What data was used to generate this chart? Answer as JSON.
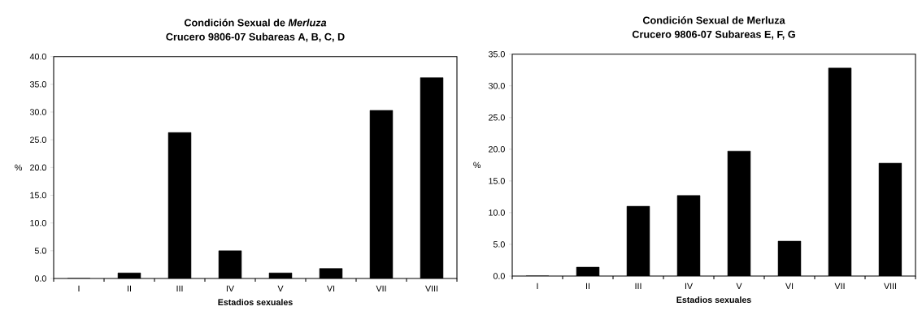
{
  "chart_data": [
    {
      "type": "bar",
      "title": "Condición Sexual de *Merluza*",
      "subtitle": "Crucero 9806-07 Subareas A, B, C, D",
      "xlabel": "Estadios sexuales",
      "ylabel": "%",
      "categories": [
        "I",
        "II",
        "III",
        "IV",
        "V",
        "VI",
        "VII",
        "VIII"
      ],
      "values": [
        0,
        1.0,
        26.3,
        5.0,
        1.0,
        1.8,
        30.3,
        36.2
      ],
      "color": "#000000",
      "ylim": [
        0,
        40
      ],
      "yticks": [
        {
          "value": 0,
          "label": "0.0"
        },
        {
          "value": 5,
          "label": "5.0"
        },
        {
          "value": 10,
          "label": "10.0"
        },
        {
          "value": 15,
          "label": "15.0"
        },
        {
          "value": 20,
          "label": "20.0"
        },
        {
          "value": 25,
          "label": "25.0"
        },
        {
          "value": 30,
          "label": "30.0"
        },
        {
          "value": 35,
          "label": "35.0"
        },
        {
          "value": 40,
          "label": "40.0"
        }
      ]
    },
    {
      "type": "bar",
      "title": "Condición Sexual de Merluza",
      "subtitle": "Crucero 9806-07 Subareas E, F, G",
      "xlabel": "Estadios sexuales",
      "ylabel": "%",
      "categories": [
        "I",
        "II",
        "III",
        "IV",
        "V",
        "VI",
        "VII",
        "VIII"
      ],
      "values": [
        0,
        1.4,
        11.0,
        12.7,
        19.7,
        5.5,
        32.8,
        17.8
      ],
      "color": "#000000",
      "ylim": [
        0,
        35
      ],
      "yticks": [
        {
          "value": 0,
          "label": "0.0"
        },
        {
          "value": 5,
          "label": "5.0"
        },
        {
          "value": 10,
          "label": "10.0"
        },
        {
          "value": 15,
          "label": "15.0"
        },
        {
          "value": 20,
          "label": "20.0"
        },
        {
          "value": 25,
          "label": "25.0"
        },
        {
          "value": 30,
          "label": "30.0"
        },
        {
          "value": 35,
          "label": "35.0"
        }
      ]
    }
  ]
}
